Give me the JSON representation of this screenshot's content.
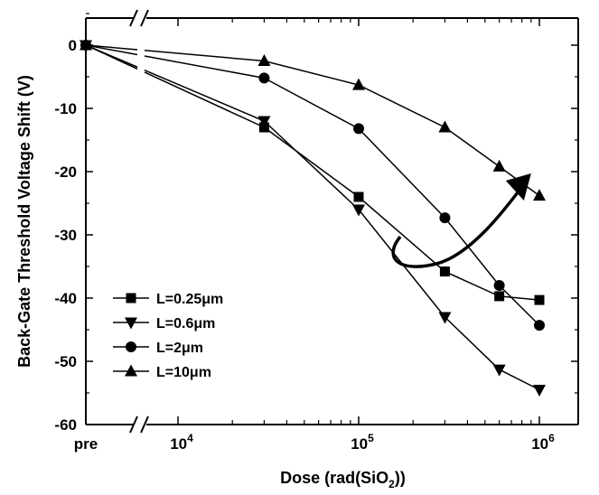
{
  "chart_data": {
    "type": "line",
    "title": "",
    "xlabel": "Dose (rad(SiO₂))",
    "ylabel": "Back-Gate Threshold Voltage Shift (V)",
    "x_scale": "log (with broken axis at pre)",
    "x_ticks": [
      {
        "label": "pre",
        "value": "pre"
      },
      {
        "label": "10⁴",
        "value": 10000
      },
      {
        "label": "10⁵",
        "value": 100000
      },
      {
        "label": "10⁶",
        "value": 1000000
      }
    ],
    "y_ticks": [
      0,
      -10,
      -20,
      -30,
      -40,
      -50,
      -60
    ],
    "ylim": [
      -60,
      5
    ],
    "grid": false,
    "legend_position": "bottom-left",
    "x": [
      "pre",
      30000,
      100000,
      300000,
      600000,
      1000000
    ],
    "series": [
      {
        "name": "L=0.25μm",
        "marker": "square",
        "values": [
          0,
          -13,
          -24,
          -35.8,
          -39.7,
          -40.3
        ]
      },
      {
        "name": "L=0.6μm",
        "marker": "triangle-down",
        "values": [
          0,
          -12,
          -26,
          -43,
          -51.3,
          -54.5
        ]
      },
      {
        "name": "L=2μm",
        "marker": "circle",
        "values": [
          0,
          -5.2,
          -13.2,
          -27.3,
          -38,
          -44.3
        ]
      },
      {
        "name": "L=10μm",
        "marker": "triangle-up",
        "values": [
          0,
          -2.5,
          -6.3,
          -13,
          -19.2,
          -23.8
        ]
      }
    ],
    "annotations": [
      {
        "type": "curved-arrow",
        "description": "curved arrow pointing from lower-L curves toward longer-L curves",
        "from": {
          "x": 200000,
          "y": -31
        },
        "to": {
          "x": 900000,
          "y": -24
        }
      }
    ]
  }
}
